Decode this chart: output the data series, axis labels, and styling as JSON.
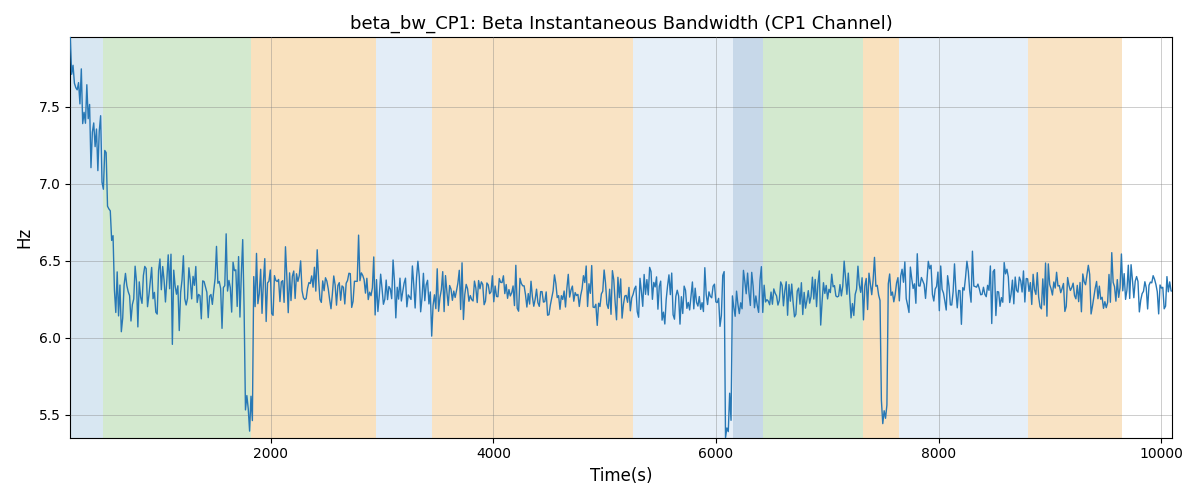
{
  "title": "beta_bw_CP1: Beta Instantaneous Bandwidth (CP1 Channel)",
  "xlabel": "Time(s)",
  "ylabel": "Hz",
  "xlim": [
    200,
    10100
  ],
  "ylim": [
    5.35,
    7.95
  ],
  "yticks": [
    5.5,
    6.0,
    6.5,
    7.0,
    7.5
  ],
  "xticks": [
    2000,
    4000,
    6000,
    8000,
    10000
  ],
  "line_color": "#2878b5",
  "line_width": 1.0,
  "seed": 42,
  "n_points": 800,
  "x_start": 200,
  "x_end": 10100,
  "bg_bands": [
    {
      "xmin": 200,
      "xmax": 490,
      "color": "#b8d4e8",
      "alpha": 0.55
    },
    {
      "xmin": 490,
      "xmax": 1820,
      "color": "#a8d4a0",
      "alpha": 0.5
    },
    {
      "xmin": 1820,
      "xmax": 2950,
      "color": "#f5c98a",
      "alpha": 0.55
    },
    {
      "xmin": 2950,
      "xmax": 3450,
      "color": "#c8ddf0",
      "alpha": 0.5
    },
    {
      "xmin": 3450,
      "xmax": 5250,
      "color": "#f5c98a",
      "alpha": 0.5
    },
    {
      "xmin": 5250,
      "xmax": 6150,
      "color": "#c8ddf0",
      "alpha": 0.45
    },
    {
      "xmin": 6150,
      "xmax": 6420,
      "color": "#b0c8e0",
      "alpha": 0.7
    },
    {
      "xmin": 6420,
      "xmax": 7320,
      "color": "#a8d4a0",
      "alpha": 0.5
    },
    {
      "xmin": 7320,
      "xmax": 7640,
      "color": "#f5c98a",
      "alpha": 0.55
    },
    {
      "xmin": 7640,
      "xmax": 8800,
      "color": "#c8ddf0",
      "alpha": 0.45
    },
    {
      "xmin": 8800,
      "xmax": 9650,
      "color": "#f5c98a",
      "alpha": 0.5
    },
    {
      "xmin": 9650,
      "xmax": 10100,
      "color": "#ffffff",
      "alpha": 0.01
    }
  ],
  "figsize": [
    12.0,
    5.0
  ],
  "dpi": 100
}
